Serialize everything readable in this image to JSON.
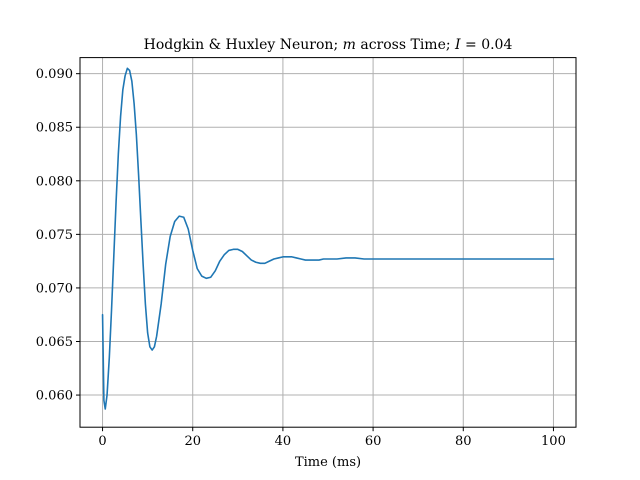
{
  "chart_data": {
    "type": "line",
    "title": {
      "prefix": "Hodgkin & Huxley Neuron; ",
      "var": "m",
      "middle": " across Time; ",
      "current_symbol": "I",
      "suffix": " = 0.04"
    },
    "xlabel": "Time (ms)",
    "ylabel": "",
    "xlim": [
      -5,
      105
    ],
    "ylim": [
      0.057,
      0.0915
    ],
    "xticks": [
      0,
      20,
      40,
      60,
      80,
      100
    ],
    "yticks": [
      0.06,
      0.065,
      0.07,
      0.075,
      0.08,
      0.085,
      0.09
    ],
    "ytick_labels": [
      "0.060",
      "0.065",
      "0.070",
      "0.075",
      "0.080",
      "0.085",
      "0.090"
    ],
    "grid": true,
    "series": [
      {
        "color": "#1f77b4",
        "x": [
          0,
          0.3,
          0.6,
          1,
          1.5,
          2,
          2.5,
          3,
          3.5,
          4,
          4.5,
          5,
          5.5,
          6,
          6.5,
          7,
          7.5,
          8,
          8.5,
          9,
          9.5,
          10,
          10.5,
          11,
          11.5,
          12,
          13,
          14,
          15,
          16,
          17,
          18,
          19,
          20,
          21,
          22,
          23,
          24,
          25,
          26,
          27,
          28,
          29,
          30,
          31,
          32,
          33,
          34,
          35,
          36,
          37,
          38,
          39,
          40,
          41,
          42,
          43,
          44,
          45,
          46,
          47,
          48,
          49,
          50,
          52,
          54,
          56,
          58,
          60,
          62,
          64,
          66,
          68,
          70,
          75,
          80,
          85,
          90,
          95,
          100
        ],
        "y": [
          0.0675,
          0.0595,
          0.0587,
          0.06,
          0.0635,
          0.068,
          0.073,
          0.078,
          0.0825,
          0.086,
          0.0885,
          0.0898,
          0.0905,
          0.0903,
          0.0893,
          0.0872,
          0.0843,
          0.0805,
          0.0763,
          0.0722,
          0.0685,
          0.0658,
          0.0645,
          0.0642,
          0.0645,
          0.0655,
          0.0685,
          0.0722,
          0.0748,
          0.0762,
          0.0767,
          0.0766,
          0.0755,
          0.0735,
          0.0718,
          0.0711,
          0.0709,
          0.071,
          0.0716,
          0.0725,
          0.0731,
          0.0735,
          0.0736,
          0.0736,
          0.0734,
          0.073,
          0.0726,
          0.0724,
          0.0723,
          0.0723,
          0.0725,
          0.0727,
          0.0728,
          0.0729,
          0.0729,
          0.0729,
          0.0728,
          0.0727,
          0.0726,
          0.0726,
          0.0726,
          0.0726,
          0.0727,
          0.0727,
          0.0727,
          0.0728,
          0.0728,
          0.0727,
          0.0727,
          0.0727,
          0.0727,
          0.0727,
          0.0727,
          0.0727,
          0.0727,
          0.0727,
          0.0727,
          0.0727,
          0.0727,
          0.0727
        ]
      }
    ]
  },
  "colors": {
    "grid": "#b0b0b0",
    "axes": "#000000",
    "line": "#1f77b4"
  }
}
